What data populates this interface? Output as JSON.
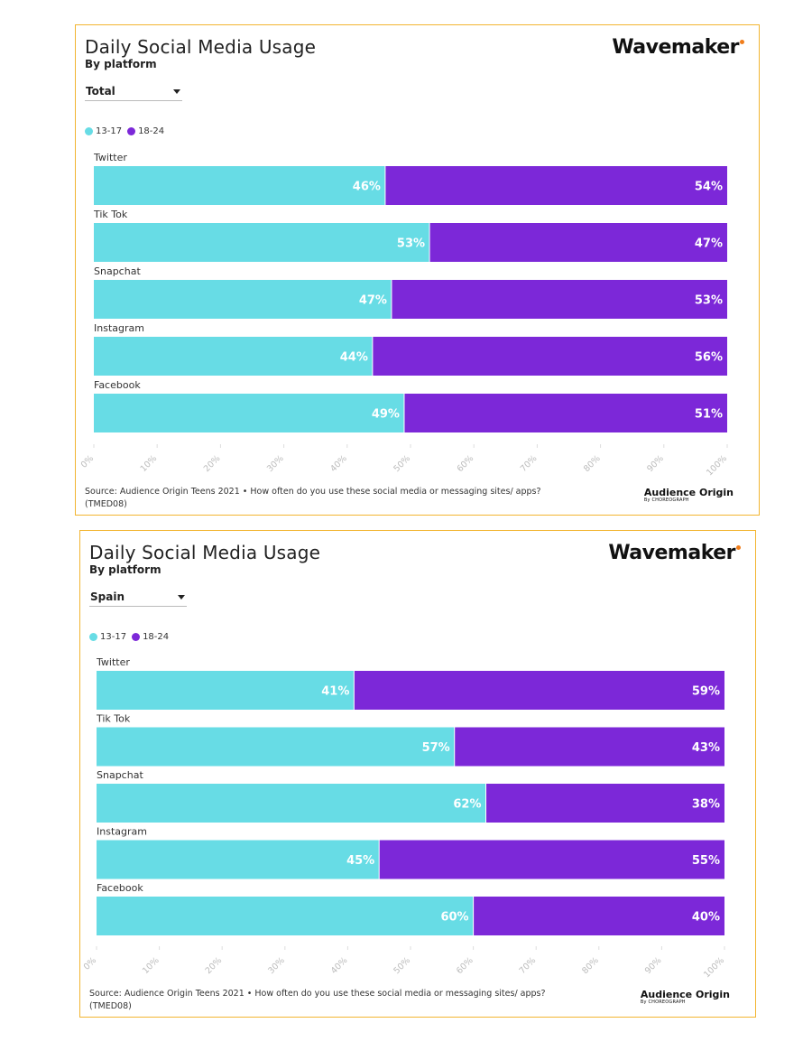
{
  "colors": {
    "c1317": "#67dce5",
    "c1824": "#7c28d8",
    "border": "#f2b531",
    "brand_dot": "#f07d1a"
  },
  "panels": [
    {
      "title": "Daily Social Media Usage",
      "subtitle": "By platform",
      "brand": "Wavemaker",
      "dropdown": "Total",
      "legend": [
        "13-17",
        "18-24"
      ],
      "source": "Source: Audience Origin Teens 2021 • How often do you use these social media or messaging sites/ apps?",
      "source_code": "(TMED08)",
      "logo_main": "Audience Origin",
      "logo_sub": "By CHOREOGRAPH"
    },
    {
      "title": "Daily Social Media Usage",
      "subtitle": "By platform",
      "brand": "Wavemaker",
      "dropdown": "Spain",
      "legend": [
        "13-17",
        "18-24"
      ],
      "source": "Source: Audience Origin Teens 2021 • How often do you use these social media or messaging sites/ apps?",
      "source_code": "(TMED08)",
      "logo_main": "Audience Origin",
      "logo_sub": "By CHOREOGRAPH"
    }
  ],
  "chart_data": [
    {
      "type": "bar",
      "stacked": true,
      "orientation": "horizontal",
      "categories": [
        "Twitter",
        "Tik Tok",
        "Snapchat",
        "Instagram",
        "Facebook"
      ],
      "series": [
        {
          "name": "13-17",
          "values": [
            46,
            53,
            47,
            44,
            49
          ],
          "labels": [
            "46%",
            "53%",
            "47%",
            "44%",
            "49%"
          ]
        },
        {
          "name": "18-24",
          "values": [
            54,
            47,
            53,
            56,
            51
          ],
          "labels": [
            "54%",
            "47%",
            "53%",
            "56%",
            "51%"
          ]
        }
      ],
      "xlim": [
        0,
        100
      ],
      "ticks": [
        "0%",
        "10%",
        "20%",
        "30%",
        "40%",
        "50%",
        "60%",
        "70%",
        "80%",
        "90%",
        "100%"
      ],
      "legend": "top-left",
      "grid": false
    },
    {
      "type": "bar",
      "stacked": true,
      "orientation": "horizontal",
      "categories": [
        "Twitter",
        "Tik Tok",
        "Snapchat",
        "Instagram",
        "Facebook"
      ],
      "series": [
        {
          "name": "13-17",
          "values": [
            41,
            57,
            62,
            45,
            60
          ],
          "labels": [
            "41%",
            "57%",
            "62%",
            "45%",
            "60%"
          ]
        },
        {
          "name": "18-24",
          "values": [
            59,
            43,
            38,
            55,
            40
          ],
          "labels": [
            "59%",
            "43%",
            "38%",
            "55%",
            "40%"
          ]
        }
      ],
      "xlim": [
        0,
        100
      ],
      "ticks": [
        "0%",
        "10%",
        "20%",
        "30%",
        "40%",
        "50%",
        "60%",
        "70%",
        "80%",
        "90%",
        "100%"
      ],
      "legend": "top-left",
      "grid": false
    }
  ]
}
